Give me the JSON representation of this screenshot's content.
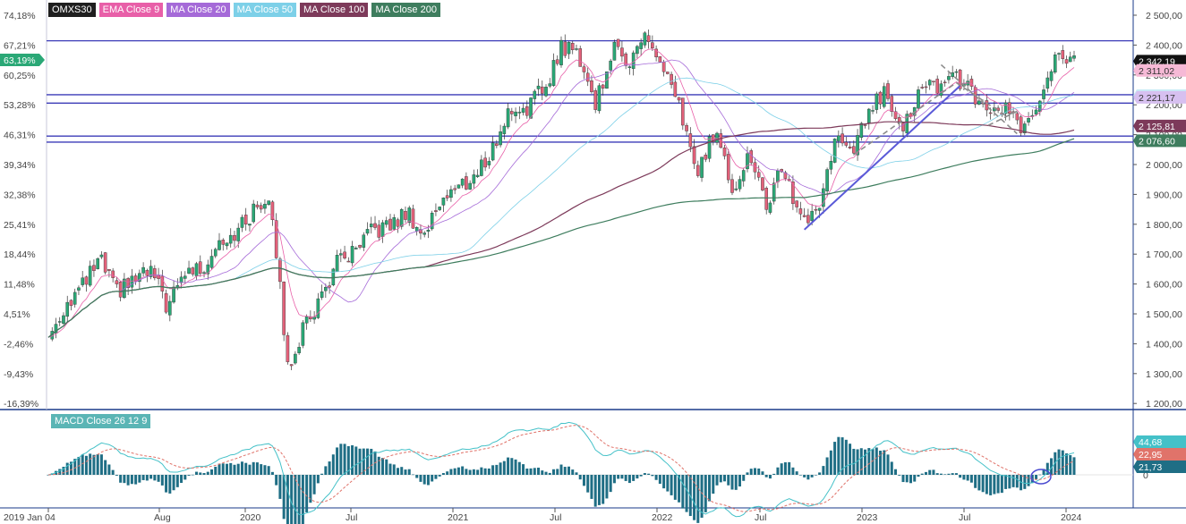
{
  "instrument": "OMXS30",
  "legend": [
    {
      "label": "OMXS30",
      "color": "#1f1f1f"
    },
    {
      "label": "EMA Close 9",
      "color": "#e85fa8"
    },
    {
      "label": "MA Close 20",
      "color": "#a56ad8"
    },
    {
      "label": "MA Close 50",
      "color": "#7dd0e8"
    },
    {
      "label": "MA Close 100",
      "color": "#7d3a5a"
    },
    {
      "label": "MA Close 200",
      "color": "#3e7d5e"
    }
  ],
  "macd_label": "MACD Close 26 12 9",
  "chart_data": [
    {
      "type": "candlestick",
      "title": "OMXS30",
      "x_axis_labels": [
        "2019 Jan 04",
        "Aug",
        "2020",
        "Jul",
        "2021",
        "Jul",
        "2022",
        "Jul",
        "2023",
        "Jul",
        "2024"
      ],
      "y_ticks_right": [
        "2 500,00",
        "2 400,00",
        "2 300,00",
        "2 200,00",
        "2 100,00",
        "2 000,00",
        "1 900,00",
        "1 800,00",
        "1 700,00",
        "1 600,00",
        "1 500,00",
        "1 400,00",
        "1 300,00",
        "1 200,00"
      ],
      "y_ticks_left": [
        "74,18%",
        "67,21%",
        "60,25%",
        "53,28%",
        "46,31%",
        "39,34%",
        "32,38%",
        "25,41%",
        "18,44%",
        "11,48%",
        "4,51%",
        "-2,46%",
        "-9,43%",
        "-16,39%"
      ],
      "left_axis_marker": "63,19%",
      "ylim": [
        1180,
        2540
      ],
      "price_path": [
        [
          "2019-01",
          1420
        ],
        [
          "2019-02",
          1530
        ],
        [
          "2019-03",
          1590
        ],
        [
          "2019-04",
          1680
        ],
        [
          "2019-05",
          1570
        ],
        [
          "2019-06",
          1610
        ],
        [
          "2019-07",
          1640
        ],
        [
          "2019-08",
          1520
        ],
        [
          "2019-09",
          1640
        ],
        [
          "2019-10",
          1650
        ],
        [
          "2019-11",
          1750
        ],
        [
          "2019-12",
          1770
        ],
        [
          "2020-01",
          1840
        ],
        [
          "2020-02",
          1900
        ],
        [
          "2020-03",
          1320
        ],
        [
          "2020-04",
          1460
        ],
        [
          "2020-05",
          1560
        ],
        [
          "2020-06",
          1680
        ],
        [
          "2020-07",
          1700
        ],
        [
          "2020-08",
          1780
        ],
        [
          "2020-09",
          1790
        ],
        [
          "2020-10",
          1840
        ],
        [
          "2020-11",
          1760
        ],
        [
          "2020-12",
          1890
        ],
        [
          "2021-01",
          1920
        ],
        [
          "2021-02",
          1960
        ],
        [
          "2021-03",
          2050
        ],
        [
          "2021-04",
          2180
        ],
        [
          "2021-05",
          2190
        ],
        [
          "2021-06",
          2250
        ],
        [
          "2021-07",
          2390
        ],
        [
          "2021-08",
          2370
        ],
        [
          "2021-09",
          2200
        ],
        [
          "2021-10",
          2380
        ],
        [
          "2021-11",
          2350
        ],
        [
          "2021-12",
          2430
        ],
        [
          "2022-01",
          2300
        ],
        [
          "2022-02",
          2170
        ],
        [
          "2022-03",
          1960
        ],
        [
          "2022-04",
          2120
        ],
        [
          "2022-05",
          1920
        ],
        [
          "2022-06",
          2030
        ],
        [
          "2022-07",
          1860
        ],
        [
          "2022-08",
          1990
        ],
        [
          "2022-09",
          1810
        ],
        [
          "2022-10",
          1840
        ],
        [
          "2022-11",
          2080
        ],
        [
          "2022-12",
          2030
        ],
        [
          "2023-01",
          2180
        ],
        [
          "2023-02",
          2240
        ],
        [
          "2023-03",
          2130
        ],
        [
          "2023-04",
          2240
        ],
        [
          "2023-05",
          2260
        ],
        [
          "2023-06",
          2300
        ],
        [
          "2023-07",
          2230
        ],
        [
          "2023-08",
          2150
        ],
        [
          "2023-09",
          2190
        ],
        [
          "2023-10",
          2100
        ],
        [
          "2023-11",
          2200
        ],
        [
          "2023-12",
          2390
        ],
        [
          "2024-01",
          2342.19
        ]
      ],
      "horizontal_levels": [
        2410,
        2230,
        2202,
        2092,
        2072
      ],
      "price_tags": [
        {
          "label": "2 342,19",
          "value": 2342.19,
          "bg": "#111111",
          "fg": "#ffffff"
        },
        {
          "label": "2 311,02",
          "value": 2311.02,
          "bg": "#f6b9d6",
          "fg": "#333333"
        },
        {
          "label": "2 227,05",
          "value": 2227.05,
          "bg": "#c9ecf6",
          "fg": "#333333"
        },
        {
          "label": "2 221,17",
          "value": 2221.17,
          "bg": "#d7c0f0",
          "fg": "#333333"
        },
        {
          "label": "2 125,81",
          "value": 2125.81,
          "bg": "#7d3a5a",
          "fg": "#ffffff"
        },
        {
          "label": "2 076,60",
          "value": 2076.6,
          "bg": "#3e7d5e",
          "fg": "#ffffff"
        }
      ]
    },
    {
      "type": "macd",
      "title": "MACD Close 26 12 9",
      "y_ticks_right": [
        "0"
      ],
      "value_tags": [
        {
          "label": "44,68",
          "value": 44.68,
          "bg": "#44c1c8",
          "fg": "#ffffff"
        },
        {
          "label": "22,95",
          "value": 22.95,
          "bg": "#e0736a",
          "fg": "#ffffff"
        },
        {
          "label": "21,73",
          "value": 21.73,
          "bg": "#1f6e85",
          "fg": "#ffffff"
        }
      ],
      "ylim": [
        -80,
        80
      ]
    }
  ],
  "colors": {
    "up_candle": "#2aa876",
    "down_candle": "#e3617a",
    "level_line": "#3b3bb8",
    "trend_line": "#5a5ad8",
    "dashed_pattern": "#8c8c8c",
    "macd_line": "#44c1c8",
    "signal_line": "#e0736a",
    "histogram": "#1f6e85"
  }
}
